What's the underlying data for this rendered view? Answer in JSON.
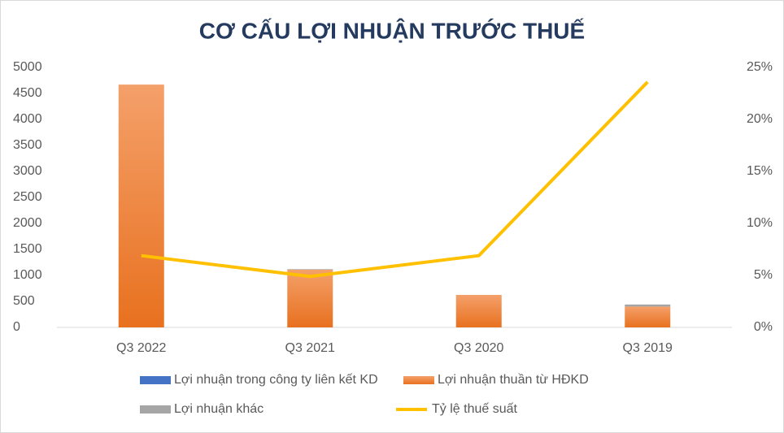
{
  "chart_data": {
    "type": "bar_line",
    "title": "CƠ CẤU LỢI NHUẬN TRƯỚC THUẾ",
    "categories": [
      "Q3 2022",
      "Q3 2021",
      "Q3 2020",
      "Q3 2019"
    ],
    "series": [
      {
        "name": "Lợi nhuận trong công ty liên kết KD",
        "color": "#4472c4",
        "type": "bar",
        "values": [
          0,
          0,
          0,
          0
        ]
      },
      {
        "name": "Lợi nhuận thuần từ HĐKD",
        "color": "#ed7d31",
        "type": "bar",
        "values": [
          4670,
          1110,
          625,
          400
        ]
      },
      {
        "name": "Lợi nhuận khác",
        "color": "#a5a5a5",
        "type": "bar",
        "values": [
          0,
          10,
          0,
          40
        ]
      },
      {
        "name": "Tỷ lệ thuế suất",
        "color": "#ffc000",
        "type": "line",
        "axis": "y2",
        "values": [
          6.9,
          4.9,
          6.9,
          23.6
        ]
      }
    ],
    "ylim": [
      0,
      5000
    ],
    "yticks": [
      0,
      500,
      1000,
      1500,
      2000,
      2500,
      3000,
      3500,
      4000,
      4500,
      5000
    ],
    "y2lim": [
      0,
      25
    ],
    "y2ticks": [
      {
        "value": 0,
        "label": "0%"
      },
      {
        "value": 5,
        "label": "5%"
      },
      {
        "value": 10,
        "label": "10%"
      },
      {
        "value": 15,
        "label": "15%"
      },
      {
        "value": 20,
        "label": "20%"
      },
      {
        "value": 25,
        "label": "25%"
      }
    ],
    "stacked": true
  }
}
